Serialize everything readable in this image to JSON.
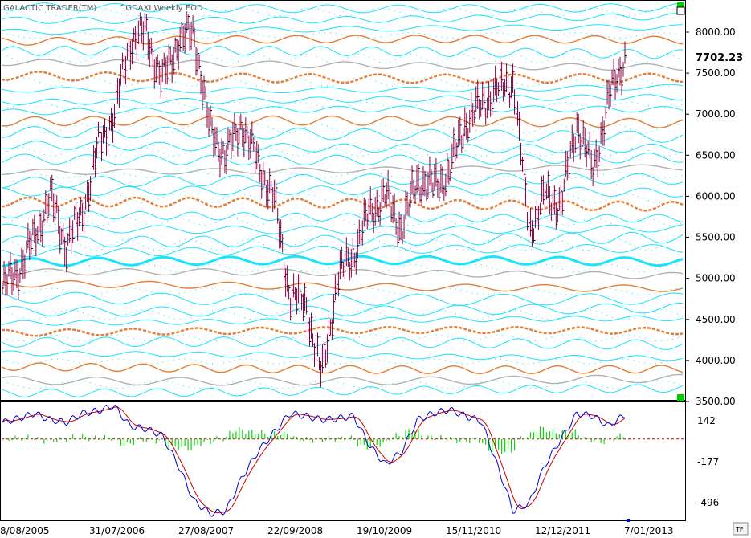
{
  "header": {
    "app_title": "GALACTIC TRADER(TM)",
    "symbol_title": "^GDAXI Weekly EOD"
  },
  "price_panel": {
    "last_price_label": "7702.23",
    "ylim": [
      3500,
      8000
    ],
    "y_ticks": [
      "8000.00",
      "7500.00",
      "7000.00",
      "6500.00",
      "6000.00",
      "5500.00",
      "5000.00",
      "4500.00",
      "4000.00",
      "3500.00"
    ]
  },
  "indicator_panel": {
    "y_ticks": [
      "142",
      "-177",
      "-496"
    ],
    "ylim": [
      -620,
      230
    ]
  },
  "x_ticks": [
    "8/08/2005",
    "31/07/2006",
    "27/08/2007",
    "22/09/2008",
    "19/10/2009",
    "15/11/2010",
    "12/12/2011",
    "7/01/2013"
  ],
  "corner_label": "TF",
  "colors": {
    "cyan_wave": "#00e0ff",
    "orange_wave": "#e07020",
    "gray_wave": "#a8a8a8",
    "price_bar": "#8b0040",
    "macd_blue": "#0000cc",
    "macd_red": "#cc0000",
    "histogram_green": "#00dd00",
    "zero_line": "#cc0000",
    "marker_green": "#00cc00"
  },
  "chart_data": [
    {
      "type": "line",
      "title": "^GDAXI Weekly EOD",
      "series": [
        {
          "name": "^GDAXI",
          "x": [
            "2005-07",
            "2005-10",
            "2006-01",
            "2006-04",
            "2006-06",
            "2006-09",
            "2006-12",
            "2007-03",
            "2007-05",
            "2007-07",
            "2007-08",
            "2007-10",
            "2007-12",
            "2008-01",
            "2008-03",
            "2008-05",
            "2008-07",
            "2008-09",
            "2008-10",
            "2008-12",
            "2009-03",
            "2009-05",
            "2009-07",
            "2009-10",
            "2009-12",
            "2010-02",
            "2010-04",
            "2010-07",
            "2010-09",
            "2010-11",
            "2011-01",
            "2011-04",
            "2011-06",
            "2011-08",
            "2011-10",
            "2011-12",
            "2012-03",
            "2012-06",
            "2012-09",
            "2012-12"
          ],
          "values": [
            4880,
            5100,
            5500,
            6000,
            5400,
            5800,
            6600,
            7000,
            7900,
            8000,
            7400,
            7900,
            8000,
            6800,
            6500,
            6900,
            6400,
            6000,
            4800,
            4700,
            3800,
            5000,
            5300,
            5800,
            6000,
            5600,
            6200,
            6100,
            6300,
            6900,
            7100,
            7300,
            7400,
            5600,
            6000,
            5900,
            6900,
            6300,
            7200,
            7700
          ]
        }
      ],
      "ylim": [
        3500,
        8000
      ],
      "last_value": 7702.23
    },
    {
      "type": "line",
      "title": "",
      "series": [
        {
          "name": "",
          "values": [
            130,
            160,
            200,
            150,
            130,
            200,
            220,
            260,
            100,
            80,
            30,
            -200,
            -480,
            -580,
            -560,
            -300,
            -100,
            50,
            200,
            180,
            150,
            160,
            180,
            -50,
            -200,
            -100,
            150,
            200,
            230,
            180,
            140,
            -200,
            -560,
            -500,
            -200,
            0,
            200,
            180,
            100,
            190
          ]
        }
      ],
      "ylim": [
        -620,
        230
      ],
      "y_ticks": [
        142,
        -177,
        -496
      ]
    }
  ]
}
